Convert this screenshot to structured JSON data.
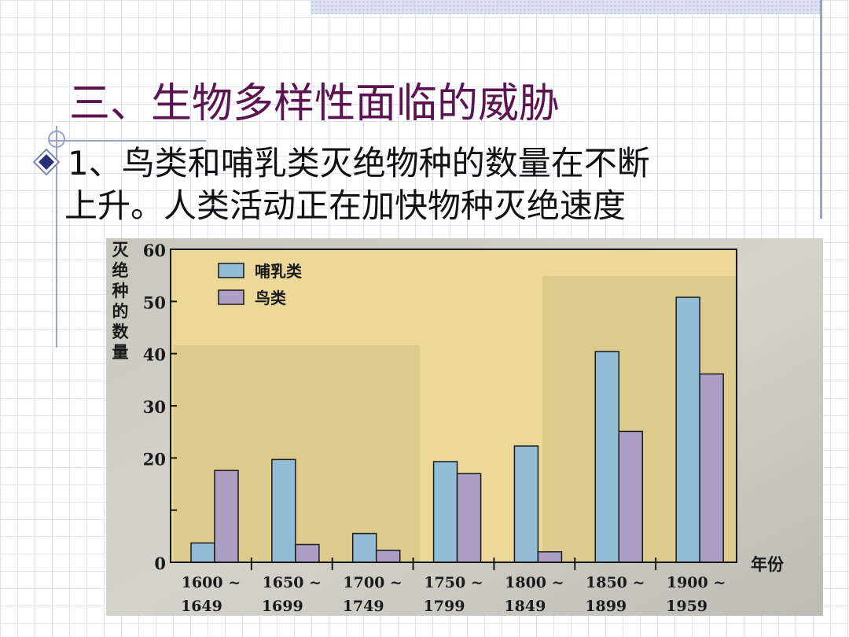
{
  "slide": {
    "title": "三、生物多样性面临的威胁",
    "bullet_line1": "1、鸟类和哺乳类灭绝物种的数量在不断",
    "bullet_line2": "上升。人类活动正在加快物种灭绝速度"
  },
  "colors": {
    "title": "#5b1450",
    "mammal": "#93bcd6",
    "bird": "#ab9fc4",
    "plot_bg": "#ecd99a",
    "photo_bg": "#c7c6bc"
  },
  "chart_data": {
    "type": "bar",
    "title": "",
    "ylabel": "灭绝种的数量",
    "xlabel": "年份",
    "ylim": [
      0,
      60
    ],
    "yticks": [
      0,
      10,
      20,
      30,
      40,
      50,
      60
    ],
    "ytick_labels": [
      "0",
      "",
      "20",
      "30",
      "40",
      "50",
      "60"
    ],
    "legend_position": "top-left",
    "categories": [
      [
        "1600 ~",
        "1649"
      ],
      [
        "1650 ~",
        "1699"
      ],
      [
        "1700 ~",
        "1749"
      ],
      [
        "1750 ~",
        "1799"
      ],
      [
        "1800 ~",
        "1849"
      ],
      [
        "1850 ~",
        "1899"
      ],
      [
        "1900 ~",
        "1959"
      ]
    ],
    "series": [
      {
        "name": "哺乳类",
        "values": [
          3.7,
          19.7,
          5.5,
          19.3,
          22.3,
          40.4,
          50.8
        ]
      },
      {
        "name": "鸟类",
        "values": [
          17.6,
          3.4,
          2.3,
          17,
          2,
          25.1,
          36.1
        ]
      }
    ]
  }
}
